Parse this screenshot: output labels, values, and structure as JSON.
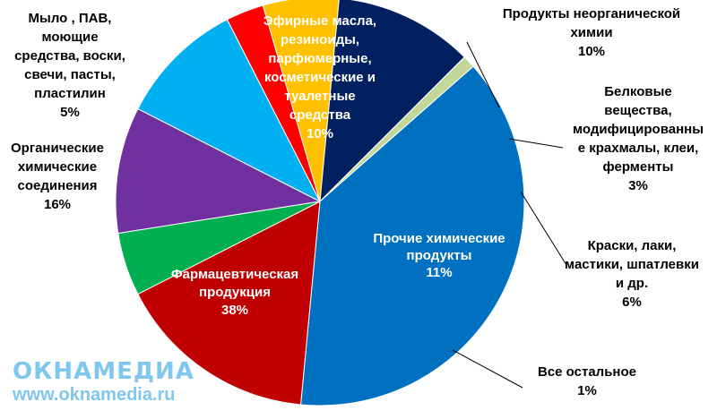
{
  "chart_data": {
    "type": "pie",
    "slices": [
      {
        "label": [
          "Эфирные масла,",
          "резиноиды,",
          "парфюмерные,",
          "косметические и",
          "туалетные",
          "средства"
        ],
        "pct_label": "10%",
        "value": 10,
        "color": "#7030a0",
        "label_color": "#ffffff"
      },
      {
        "label": [
          "Продукты неорганической",
          "химии"
        ],
        "pct_label": "10%",
        "value": 10,
        "color": "#00b0f0",
        "label_color": "#000000"
      },
      {
        "label": [
          "Белковые",
          "вещества,",
          "модифицированны",
          "е крахмалы, клеи,",
          "ферменты"
        ],
        "pct_label": "3%",
        "value": 3,
        "color": "#ff0000",
        "label_color": "#000000"
      },
      {
        "label": [
          "Краски, лаки,",
          "мастики, шпатлевки",
          "и др."
        ],
        "pct_label": "6%",
        "value": 6,
        "color": "#ffc000",
        "label_color": "#000000"
      },
      {
        "label": [
          "Прочие химические",
          "продукты"
        ],
        "pct_label": "11%",
        "value": 11,
        "color": "#002060",
        "label_color": "#ffffff"
      },
      {
        "label": [
          "Все остальное"
        ],
        "pct_label": "1%",
        "value": 1,
        "color": "#c4d79b",
        "label_color": "#000000"
      },
      {
        "label": [
          "Фармацевтическая",
          "продукция"
        ],
        "pct_label": "38%",
        "value": 38,
        "color": "#0070c0",
        "label_color": "#ffffff"
      },
      {
        "label": [
          "Органические",
          "химические",
          "соединения"
        ],
        "pct_label": "16%",
        "value": 16,
        "color": "#c00000",
        "label_color": "#000000"
      },
      {
        "label": [
          "Мыло , ПАВ,",
          "моющие",
          "средства, воски,",
          "свечи, пасты,",
          "пластилин"
        ],
        "pct_label": "5%",
        "value": 5,
        "color": "#00b050",
        "label_color": "#000000"
      }
    ]
  },
  "watermark": {
    "logo": "ОКНАМЕДИА",
    "url": "www.oknamedia.ru"
  }
}
